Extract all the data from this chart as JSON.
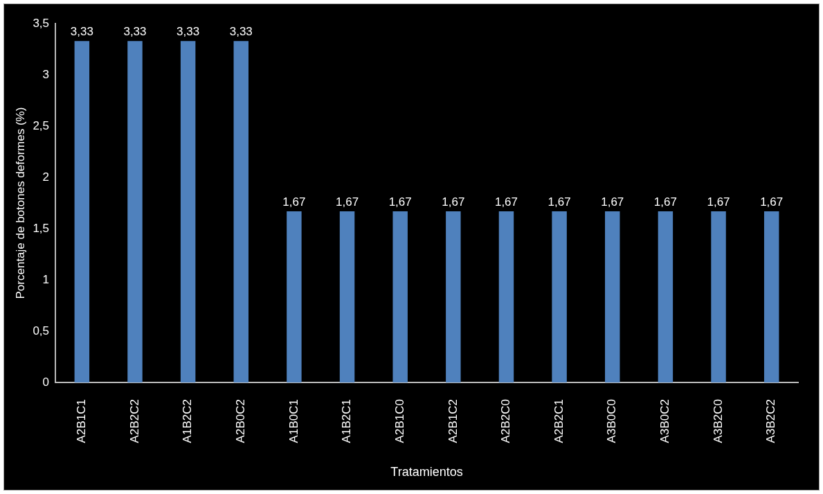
{
  "chart_data": {
    "type": "bar",
    "xlabel": "Tratamientos",
    "ylabel": "Porcentaje de botones deformes (%)",
    "categories": [
      "A2B1C1",
      "A2B2C2",
      "A1B2C2",
      "A2B0C2",
      "A1B0C1",
      "A1B2C1",
      "A2B1C0",
      "A2B1C2",
      "A2B2C0",
      "A2B2C1",
      "A3B0C0",
      "A3B0C2",
      "A3B2C0",
      "A3B2C2"
    ],
    "values": [
      3.33,
      3.33,
      3.33,
      3.33,
      1.67,
      1.67,
      1.67,
      1.67,
      1.67,
      1.67,
      1.67,
      1.67,
      1.67,
      1.67
    ],
    "value_labels": [
      "3,33",
      "3,33",
      "3,33",
      "3,33",
      "1,67",
      "1,67",
      "1,67",
      "1,67",
      "1,67",
      "1,67",
      "1,67",
      "1,67",
      "1,67",
      "1,67"
    ],
    "color": "#4f81bd",
    "ylim": [
      0,
      3.5
    ],
    "yticks": [
      0,
      {
        "value": 0.5,
        "label": "0,5"
      },
      1,
      {
        "value": 1.5,
        "label": "1,5"
      },
      2,
      {
        "value": 2.5,
        "label": "2,5"
      },
      3,
      {
        "value": 3.5,
        "label": "3,5"
      }
    ],
    "grid": false,
    "legend": false
  }
}
